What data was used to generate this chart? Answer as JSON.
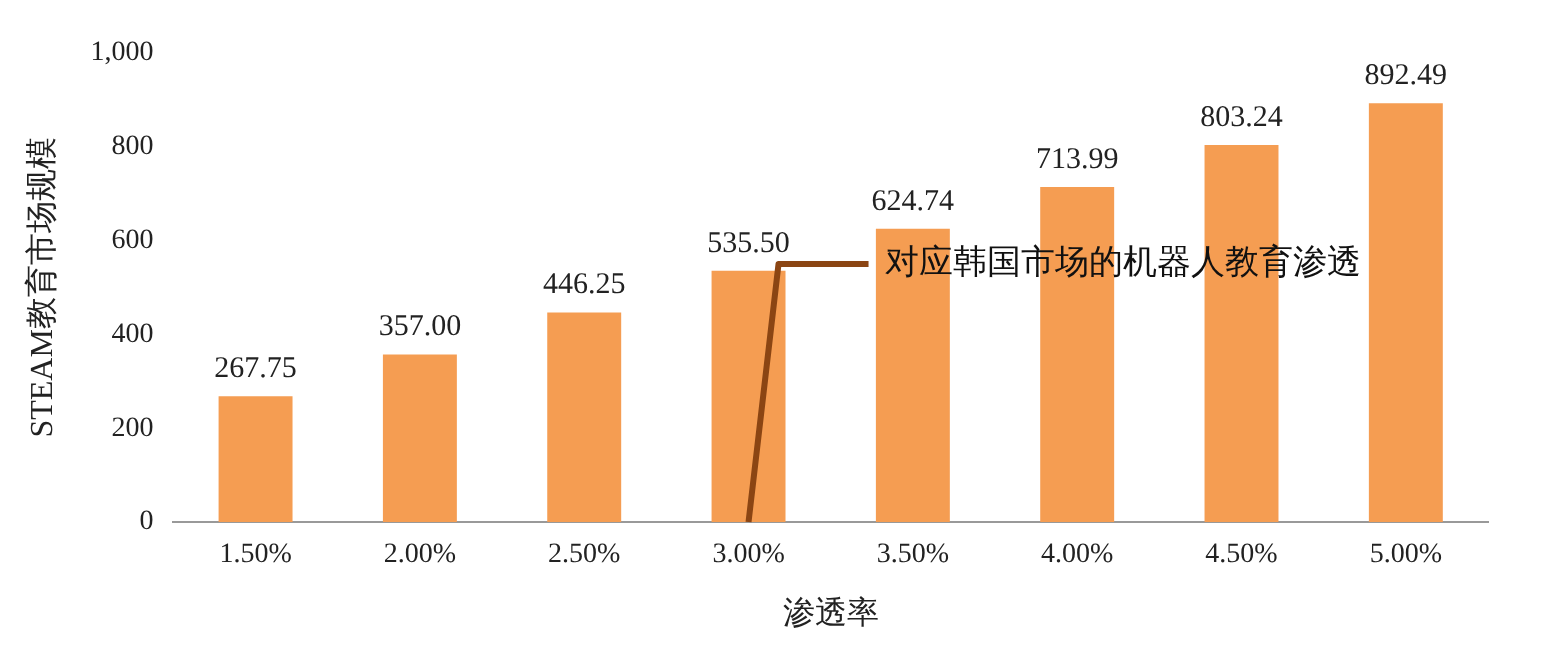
{
  "chart_data": {
    "type": "bar",
    "xlabel": "渗透率",
    "ylabel": "STEAM教育市场规模",
    "categories": [
      "1.50%",
      "2.00%",
      "2.50%",
      "3.00%",
      "3.50%",
      "4.00%",
      "4.50%",
      "5.00%"
    ],
    "values": [
      267.75,
      357.0,
      446.25,
      535.5,
      624.74,
      713.99,
      803.24,
      892.49
    ],
    "value_labels": [
      "267.75",
      "357.00",
      "446.25",
      "535.50",
      "624.74",
      "713.99",
      "803.24",
      "892.49"
    ],
    "color": "#f59d52",
    "ylim": [
      0,
      1000
    ],
    "yticks": [
      0,
      200,
      400,
      600,
      800,
      {
        "value": 1000,
        "label": "1,000"
      }
    ],
    "grid": false,
    "annotations": [
      {
        "text": "对应韩国市场的机器人教育渗透",
        "x": "3.00%",
        "y": 0
      }
    ]
  }
}
